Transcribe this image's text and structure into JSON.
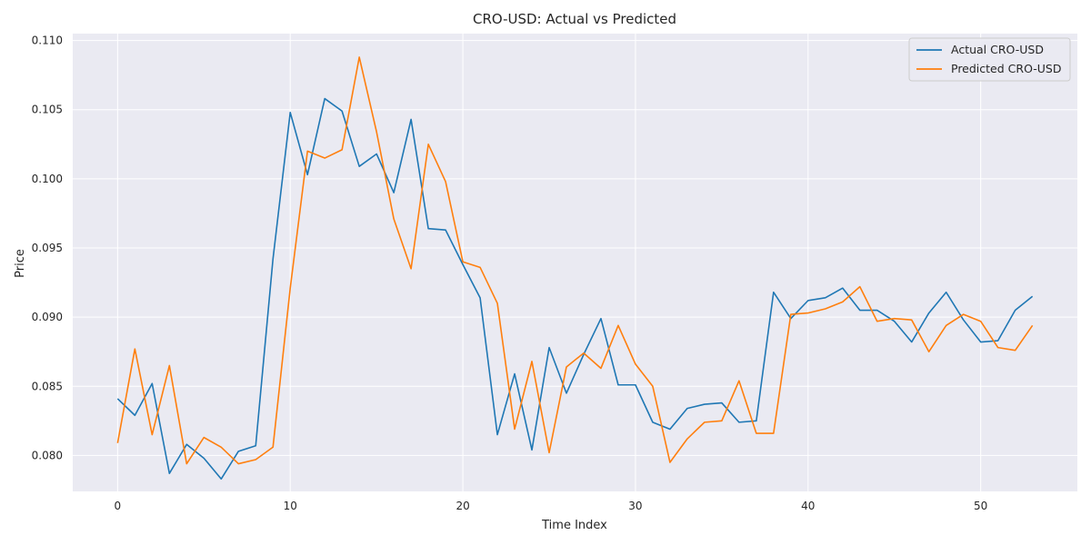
{
  "chart_data": {
    "type": "line",
    "title": "CRO-USD: Actual vs Predicted",
    "xlabel": "Time Index",
    "ylabel": "Price",
    "xlim": [
      -2.6,
      55.6
    ],
    "ylim": [
      0.0774,
      0.1105
    ],
    "xticks": [
      0,
      10,
      20,
      30,
      40,
      50
    ],
    "yticks": [
      0.08,
      0.085,
      0.09,
      0.095,
      0.1,
      0.105,
      0.11
    ],
    "grid": true,
    "legend_position": "top-right",
    "series": [
      {
        "name": "Actual CRO-USD",
        "color": "#1f77b4",
        "values": [
          0.0841,
          0.0829,
          0.0852,
          0.0787,
          0.0808,
          0.0798,
          0.0783,
          0.0803,
          0.0807,
          0.0942,
          0.1048,
          0.1003,
          0.1058,
          0.1049,
          0.1009,
          0.1018,
          0.099,
          0.1043,
          0.0964,
          0.0963,
          0.0938,
          0.0914,
          0.0815,
          0.0859,
          0.0804,
          0.0878,
          0.0845,
          0.0873,
          0.0899,
          0.0851,
          0.0851,
          0.0824,
          0.0819,
          0.0834,
          0.0837,
          0.0838,
          0.0824,
          0.0825,
          0.0918,
          0.0899,
          0.0912,
          0.0914,
          0.0921,
          0.0905,
          0.0905,
          0.0897,
          0.0882,
          0.0903,
          0.0918,
          0.0898,
          0.0882,
          0.0883,
          0.0905,
          0.0915
        ]
      },
      {
        "name": "Predicted CRO-USD",
        "color": "#ff7f0e",
        "values": [
          0.0809,
          0.0877,
          0.0815,
          0.0865,
          0.0794,
          0.0813,
          0.0806,
          0.0794,
          0.0797,
          0.0806,
          0.0921,
          0.102,
          0.1015,
          0.1021,
          0.1088,
          0.1034,
          0.0971,
          0.0935,
          0.1025,
          0.0998,
          0.094,
          0.0936,
          0.091,
          0.0819,
          0.0868,
          0.0802,
          0.0864,
          0.0874,
          0.0863,
          0.0894,
          0.0866,
          0.085,
          0.0795,
          0.0812,
          0.0824,
          0.0825,
          0.0854,
          0.0816,
          0.0816,
          0.0902,
          0.0903,
          0.0906,
          0.0911,
          0.0922,
          0.0897,
          0.0899,
          0.0898,
          0.0875,
          0.0894,
          0.0902,
          0.0897,
          0.0878,
          0.0876,
          0.0894
        ]
      }
    ]
  }
}
